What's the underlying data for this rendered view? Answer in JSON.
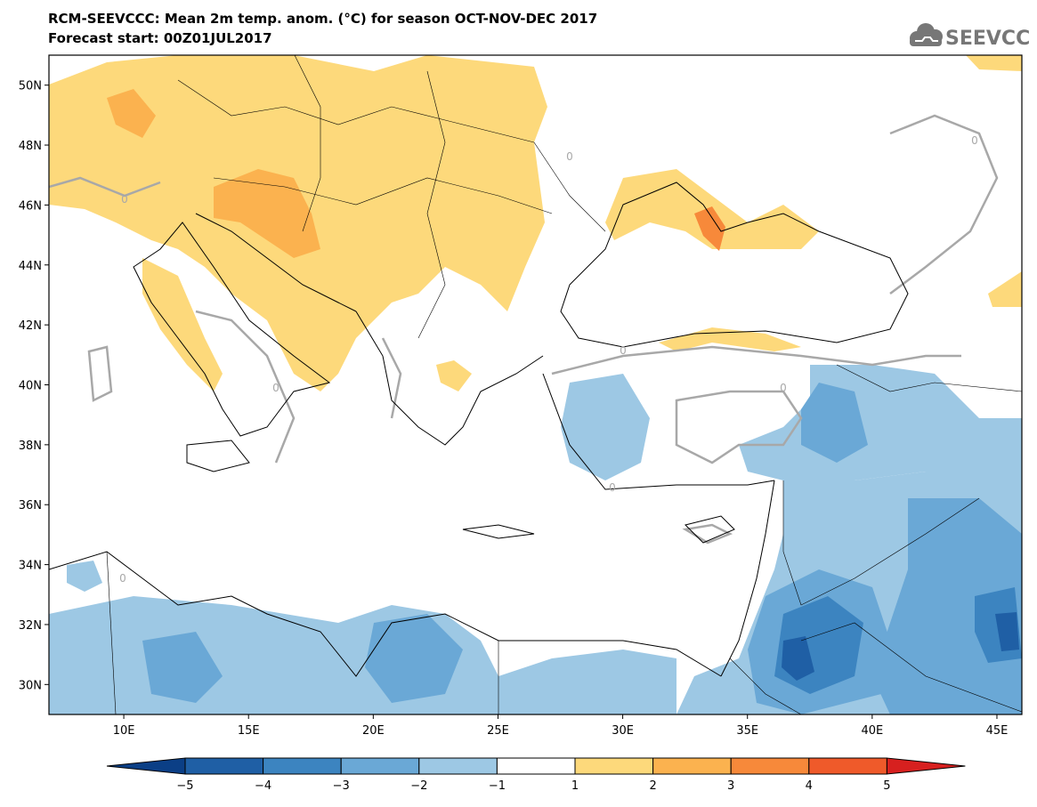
{
  "header": {
    "title_line1": "RCM-SEEVCCC: Mean 2m temp. anom. (°C) for season OCT-NOV-DEC 2017",
    "title_line2": "Forecast start: 00Z01JUL2017",
    "logo_text": "SEEVCCC"
  },
  "map": {
    "lon_range": [
      7,
      46
    ],
    "lat_range": [
      29,
      51
    ],
    "lat_ticks": [
      {
        "value": 50,
        "label": "50N"
      },
      {
        "value": 48,
        "label": "48N"
      },
      {
        "value": 46,
        "label": "46N"
      },
      {
        "value": 44,
        "label": "44N"
      },
      {
        "value": 42,
        "label": "42N"
      },
      {
        "value": 40,
        "label": "40N"
      },
      {
        "value": 38,
        "label": "38N"
      },
      {
        "value": 36,
        "label": "36N"
      },
      {
        "value": 34,
        "label": "34N"
      },
      {
        "value": 32,
        "label": "32N"
      },
      {
        "value": 30,
        "label": "30N"
      }
    ],
    "lon_ticks": [
      {
        "value": 10,
        "label": "10E"
      },
      {
        "value": 15,
        "label": "15E"
      },
      {
        "value": 20,
        "label": "20E"
      },
      {
        "value": 25,
        "label": "25E"
      },
      {
        "value": 30,
        "label": "30E"
      },
      {
        "value": 35,
        "label": "35E"
      },
      {
        "value": 40,
        "label": "40E"
      },
      {
        "value": 45,
        "label": "45E"
      }
    ],
    "contour_labels": [
      "0",
      "0",
      "0",
      "0",
      "0",
      "0",
      "0",
      "0"
    ]
  },
  "colorbar": {
    "labels": [
      "−5",
      "−4",
      "−3",
      "−2",
      "−1",
      "1",
      "2",
      "3",
      "4",
      "5"
    ],
    "colors": [
      "#1f5fa5",
      "#3c84c0",
      "#6aa8d6",
      "#9dc8e4",
      "#ffffff",
      "#fdd97b",
      "#fbb24f",
      "#f7893a",
      "#ef5a2a"
    ],
    "below_color": "#0b3f86",
    "above_color": "#d7201f"
  },
  "colors": {
    "warm1": "#fdd97b",
    "warm2": "#fbb24f",
    "warm3": "#f7893a",
    "cold1": "#9dc8e4",
    "cold2": "#6aa8d6",
    "cold3": "#3c84c0",
    "cold4": "#1f5fa5",
    "contour": "#a8a8a8"
  }
}
